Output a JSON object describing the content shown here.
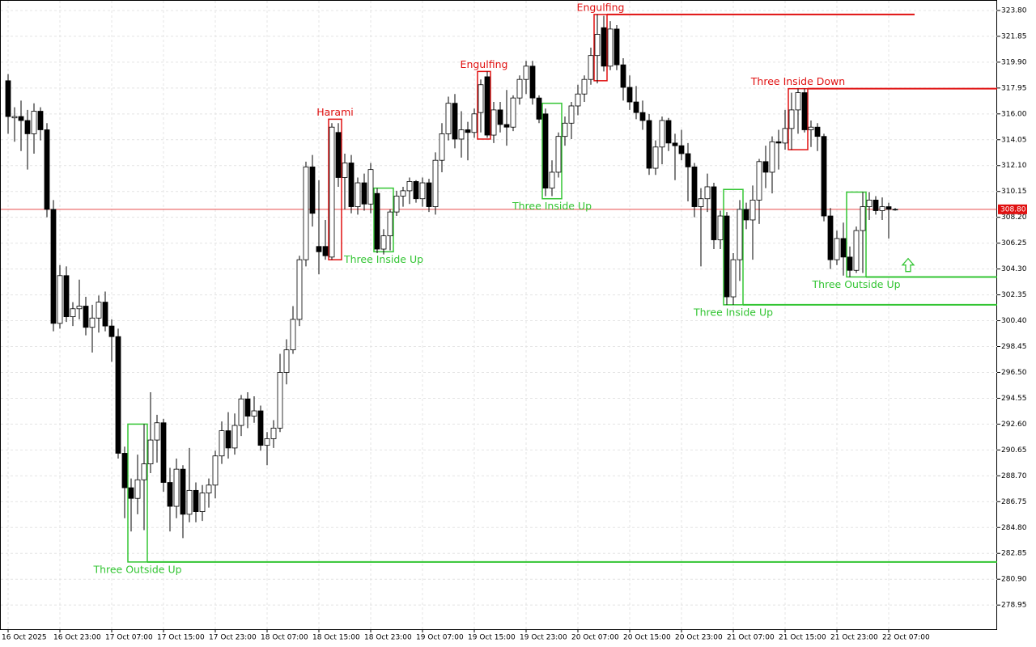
{
  "chart_data": {
    "type": "candlestick",
    "ylim": [
      277.13,
      324.59
    ],
    "yticks": [
      {
        "value": 323.8,
        "label": "323.80"
      },
      {
        "value": 321.85,
        "label": "321.85"
      },
      {
        "value": 319.9,
        "label": "319.90"
      },
      {
        "value": 317.95,
        "label": "317.95"
      },
      {
        "value": 316,
        "label": "316.00"
      },
      {
        "value": 314.05,
        "label": "314.05"
      },
      {
        "value": 312.1,
        "label": "312.10"
      },
      {
        "value": 310.15,
        "label": "310.15"
      },
      {
        "value": 308.2,
        "label": "308.20"
      },
      {
        "value": 306.25,
        "label": "306.25"
      },
      {
        "value": 304.3,
        "label": "304.30"
      },
      {
        "value": 302.35,
        "label": "302.35"
      },
      {
        "value": 300.4,
        "label": "300.40"
      },
      {
        "value": 298.45,
        "label": "298.45"
      },
      {
        "value": 296.5,
        "label": "296.50"
      },
      {
        "value": 294.55,
        "label": "294.55"
      },
      {
        "value": 292.6,
        "label": "292.60"
      },
      {
        "value": 290.65,
        "label": "290.65"
      },
      {
        "value": 288.7,
        "label": "288.70"
      },
      {
        "value": 286.75,
        "label": "286.75"
      },
      {
        "value": 284.8,
        "label": "284.80"
      },
      {
        "value": 282.85,
        "label": "282.85"
      },
      {
        "value": 280.9,
        "label": "280.90"
      },
      {
        "value": 278.95,
        "label": "278.95"
      }
    ],
    "xticks": [
      {
        "value": 0,
        "label": "16 Oct 2025"
      },
      {
        "value": 8,
        "label": "16 Oct 23:00"
      },
      {
        "value": 16,
        "label": "17 Oct 07:00"
      },
      {
        "value": 24,
        "label": "17 Oct 15:00"
      },
      {
        "value": 32,
        "label": "17 Oct 23:00"
      },
      {
        "value": 40,
        "label": "18 Oct 07:00"
      },
      {
        "value": 48,
        "label": "18 Oct 15:00"
      },
      {
        "value": 56,
        "label": "18 Oct 23:00"
      },
      {
        "value": 64,
        "label": "19 Oct 07:00"
      },
      {
        "value": 72,
        "label": "19 Oct 15:00"
      },
      {
        "value": 80,
        "label": "19 Oct 23:00"
      },
      {
        "value": 88,
        "label": "20 Oct 07:00"
      },
      {
        "value": 96,
        "label": "20 Oct 15:00"
      },
      {
        "value": 104,
        "label": "20 Oct 23:00"
      },
      {
        "value": 112,
        "label": "21 Oct 07:00"
      },
      {
        "value": 120,
        "label": "21 Oct 15:00"
      },
      {
        "value": 128,
        "label": "21 Oct 23:00"
      },
      {
        "value": 136,
        "label": "22 Oct 07:00"
      }
    ],
    "grid": true,
    "current_price": {
      "value": 308.8,
      "label": "308.80",
      "color": "#e01010"
    },
    "candles": [
      [
        318.5,
        319.0,
        314.5,
        315.8
      ],
      [
        315.7,
        316.5,
        313.9,
        315.8
      ],
      [
        315.8,
        317.0,
        313.2,
        315.5
      ],
      [
        315.5,
        316.3,
        311.8,
        314.5
      ],
      [
        314.5,
        316.8,
        313.0,
        316.2
      ],
      [
        316.2,
        316.5,
        314.0,
        314.8
      ],
      [
        314.8,
        315.3,
        308.2,
        308.8
      ],
      [
        308.8,
        309.5,
        299.6,
        300.2
      ],
      [
        300.2,
        304.6,
        299.8,
        303.8
      ],
      [
        303.8,
        304.5,
        300.3,
        300.7
      ],
      [
        300.7,
        301.8,
        300.0,
        301.3
      ],
      [
        301.3,
        303.5,
        300.5,
        301.5
      ],
      [
        301.5,
        302.2,
        299.3,
        299.9
      ],
      [
        299.9,
        301.6,
        298.0,
        300.6
      ],
      [
        300.6,
        302.3,
        299.5,
        301.8
      ],
      [
        301.8,
        302.6,
        299.6,
        300.0
      ],
      [
        300.0,
        300.5,
        297.3,
        299.2
      ],
      [
        299.2,
        299.8,
        290.0,
        290.4
      ],
      [
        290.4,
        290.9,
        285.5,
        287.8
      ],
      [
        287.8,
        288.5,
        284.5,
        287.0
      ],
      [
        287.0,
        290.3,
        285.8,
        288.4
      ],
      [
        288.4,
        292.6,
        284.6,
        289.6
      ],
      [
        289.6,
        295.0,
        288.9,
        291.4
      ],
      [
        291.4,
        293.3,
        289.7,
        292.7
      ],
      [
        292.7,
        293.0,
        287.5,
        288.2
      ],
      [
        288.2,
        289.3,
        284.5,
        286.4
      ],
      [
        286.4,
        290.0,
        285.5,
        289.2
      ],
      [
        289.2,
        289.5,
        284.0,
        285.8
      ],
      [
        285.8,
        290.8,
        285.2,
        287.6
      ],
      [
        287.6,
        288.2,
        285.2,
        286.0
      ],
      [
        286.0,
        288.0,
        285.3,
        287.4
      ],
      [
        287.4,
        288.5,
        286.3,
        288.0
      ],
      [
        288.0,
        290.6,
        287.0,
        290.2
      ],
      [
        290.2,
        292.8,
        289.6,
        292.1
      ],
      [
        292.1,
        293.5,
        290.0,
        290.8
      ],
      [
        290.8,
        293.4,
        290.3,
        292.5
      ],
      [
        292.5,
        294.8,
        291.7,
        294.5
      ],
      [
        294.5,
        295.0,
        292.3,
        293.2
      ],
      [
        293.2,
        294.7,
        292.7,
        293.6
      ],
      [
        293.6,
        294.0,
        290.6,
        291.0
      ],
      [
        291.0,
        292.0,
        289.5,
        291.5
      ],
      [
        291.5,
        292.9,
        290.8,
        292.3
      ],
      [
        292.3,
        297.9,
        292.0,
        296.5
      ],
      [
        296.5,
        299.0,
        295.6,
        298.2
      ],
      [
        298.2,
        301.5,
        297.9,
        300.5
      ],
      [
        300.5,
        305.3,
        300.0,
        305.0
      ],
      [
        305.0,
        312.4,
        304.5,
        312.0
      ],
      [
        312.0,
        312.9,
        307.5,
        308.5
      ],
      [
        306.0,
        311.0,
        303.9,
        305.6
      ],
      [
        306.0,
        308.0,
        305.0,
        305.3
      ],
      [
        305.2,
        315.3,
        305.0,
        315.0
      ],
      [
        314.6,
        315.3,
        310.5,
        311.2
      ],
      [
        311.2,
        313.0,
        308.8,
        312.3
      ],
      [
        312.3,
        312.9,
        308.5,
        309.0
      ],
      [
        309.0,
        311.2,
        308.4,
        310.8
      ],
      [
        310.8,
        311.5,
        308.7,
        309.2
      ],
      [
        309.2,
        312.3,
        308.5,
        311.8
      ],
      [
        310.0,
        310.4,
        305.5,
        305.8
      ],
      [
        305.8,
        307.3,
        305.4,
        306.8
      ],
      [
        306.8,
        308.8,
        305.7,
        308.6
      ],
      [
        308.6,
        310.2,
        308.3,
        309.8
      ],
      [
        309.8,
        310.5,
        309.0,
        310.2
      ],
      [
        310.2,
        311.2,
        309.2,
        310.9
      ],
      [
        310.9,
        311.0,
        309.3,
        309.6
      ],
      [
        309.6,
        311.2,
        309.0,
        310.8
      ],
      [
        310.8,
        311.1,
        308.6,
        309.0
      ],
      [
        309.0,
        313.1,
        308.4,
        312.5
      ],
      [
        312.5,
        315.3,
        311.6,
        314.5
      ],
      [
        314.5,
        317.3,
        314.0,
        316.8
      ],
      [
        316.8,
        317.5,
        313.4,
        314.1
      ],
      [
        314.1,
        316.2,
        312.7,
        314.8
      ],
      [
        314.8,
        315.4,
        312.5,
        314.6
      ],
      [
        314.6,
        316.4,
        314.2,
        316.0
      ],
      [
        316.1,
        318.6,
        314.6,
        318.2
      ],
      [
        318.8,
        319.2,
        314.2,
        314.4
      ],
      [
        314.4,
        316.9,
        313.8,
        316.3
      ],
      [
        316.3,
        316.9,
        314.6,
        315.2
      ],
      [
        315.2,
        317.8,
        313.6,
        315.0
      ],
      [
        315.0,
        317.4,
        314.7,
        317.2
      ],
      [
        317.2,
        318.9,
        316.7,
        318.6
      ],
      [
        318.6,
        320.0,
        317.5,
        319.6
      ],
      [
        319.6,
        320.0,
        316.7,
        317.2
      ],
      [
        317.2,
        317.4,
        315.3,
        315.6
      ],
      [
        316.0,
        316.4,
        309.8,
        310.4
      ],
      [
        310.4,
        312.5,
        309.8,
        311.6
      ],
      [
        311.6,
        314.6,
        311.2,
        314.3
      ],
      [
        314.3,
        315.8,
        313.6,
        315.3
      ],
      [
        315.3,
        316.9,
        314.1,
        316.6
      ],
      [
        316.6,
        318.2,
        315.9,
        317.5
      ],
      [
        317.5,
        318.9,
        316.9,
        318.6
      ],
      [
        318.6,
        321.0,
        318.2,
        320.4
      ],
      [
        320.4,
        323.5,
        318.3,
        322.0
      ],
      [
        322.5,
        323.4,
        319.2,
        319.6
      ],
      [
        319.6,
        323.0,
        319.3,
        322.4
      ],
      [
        322.4,
        322.7,
        319.3,
        319.7
      ],
      [
        319.7,
        320.2,
        317.0,
        318.0
      ],
      [
        318.0,
        318.9,
        316.3,
        316.9
      ],
      [
        316.9,
        318.1,
        315.6,
        316.1
      ],
      [
        316.1,
        317.0,
        314.8,
        315.5
      ],
      [
        315.5,
        316.0,
        311.4,
        311.9
      ],
      [
        311.9,
        314.0,
        311.4,
        313.5
      ],
      [
        313.5,
        315.8,
        312.2,
        315.5
      ],
      [
        315.5,
        315.7,
        313.2,
        313.8
      ],
      [
        313.8,
        314.5,
        311.0,
        313.6
      ],
      [
        313.6,
        314.8,
        312.5,
        313.0
      ],
      [
        313.0,
        313.8,
        309.4,
        312.0
      ],
      [
        312.0,
        312.3,
        308.2,
        309.0
      ],
      [
        309.0,
        310.4,
        304.5,
        309.6
      ],
      [
        309.6,
        311.5,
        308.6,
        310.5
      ],
      [
        310.5,
        310.8,
        305.8,
        306.5
      ],
      [
        306.5,
        308.7,
        305.8,
        308.3
      ],
      [
        308.3,
        308.6,
        301.6,
        302.2
      ],
      [
        302.2,
        305.5,
        301.6,
        305.0
      ],
      [
        305.0,
        309.5,
        303.4,
        308.8
      ],
      [
        308.8,
        309.3,
        307.3,
        308.0
      ],
      [
        308.0,
        310.6,
        305.0,
        309.5
      ],
      [
        309.5,
        312.6,
        307.7,
        312.4
      ],
      [
        312.4,
        313.6,
        310.4,
        311.6
      ],
      [
        311.6,
        314.3,
        310.0,
        313.9
      ],
      [
        313.9,
        314.8,
        311.8,
        313.8
      ],
      [
        313.8,
        316.3,
        313.3,
        314.9
      ],
      [
        314.9,
        317.6,
        313.3,
        316.3
      ],
      [
        316.3,
        317.9,
        314.5,
        317.6
      ],
      [
        317.6,
        317.9,
        314.6,
        314.8
      ],
      [
        314.8,
        315.5,
        313.5,
        315.0
      ],
      [
        315.0,
        315.3,
        313.2,
        314.3
      ],
      [
        314.3,
        314.5,
        307.9,
        308.3
      ],
      [
        308.3,
        308.9,
        304.3,
        305.0
      ],
      [
        305.0,
        307.2,
        304.6,
        306.6
      ],
      [
        306.6,
        307.8,
        303.8,
        305.2
      ],
      [
        305.2,
        306.0,
        303.7,
        304.2
      ],
      [
        304.2,
        307.5,
        304.0,
        307.2
      ],
      [
        307.2,
        310.1,
        304.0,
        309.0
      ],
      [
        309.0,
        310.1,
        308.0,
        309.5
      ],
      [
        309.5,
        309.8,
        308.4,
        308.7
      ],
      [
        308.7,
        309.7,
        308.0,
        309.0
      ],
      [
        309.0,
        309.3,
        306.6,
        308.8
      ],
      [
        308.8,
        308.9,
        308.7,
        308.8
      ]
    ],
    "patterns": [
      {
        "label": "Three Outside Up",
        "color": "#33c533",
        "start": 19,
        "end": 21,
        "top": 292.6,
        "bottom": 282.2,
        "level": 282.2
      },
      {
        "label": "Harami",
        "color": "#e01010",
        "start": 50,
        "end": 51,
        "top": 315.6,
        "bottom": 305.0
      },
      {
        "label": "Three Inside Up",
        "color": "#33c533",
        "start": 57,
        "end": 59,
        "top": 310.4,
        "bottom": 305.6
      },
      {
        "label": "Engulfing",
        "color": "#e01010",
        "start": 73,
        "end": 74,
        "top": 319.2,
        "bottom": 314.1
      },
      {
        "label": "Three Inside Up",
        "color": "#33c533",
        "start": 83,
        "end": 85,
        "top": 316.8,
        "bottom": 309.6
      },
      {
        "label": "Engulfing",
        "color": "#e01010",
        "start": 91,
        "end": 92,
        "top": 323.5,
        "bottom": 318.5,
        "level": 323.5,
        "level_end": 140
      },
      {
        "label": "Three Inside Up",
        "color": "#33c533",
        "start": 111,
        "end": 113,
        "top": 310.3,
        "bottom": 301.6,
        "level": 301.6
      },
      {
        "label": "Three Inside Down",
        "color": "#e01010",
        "start": 121,
        "end": 123,
        "top": 317.9,
        "bottom": 313.3,
        "level": 317.9
      },
      {
        "label": "Three Outside Up",
        "color": "#33c533",
        "start": 130,
        "end": 132,
        "top": 310.1,
        "bottom": 303.7,
        "level": 303.7
      }
    ],
    "signal_arrow": {
      "index": 139,
      "value": 304.6,
      "color": "#33c533"
    }
  }
}
